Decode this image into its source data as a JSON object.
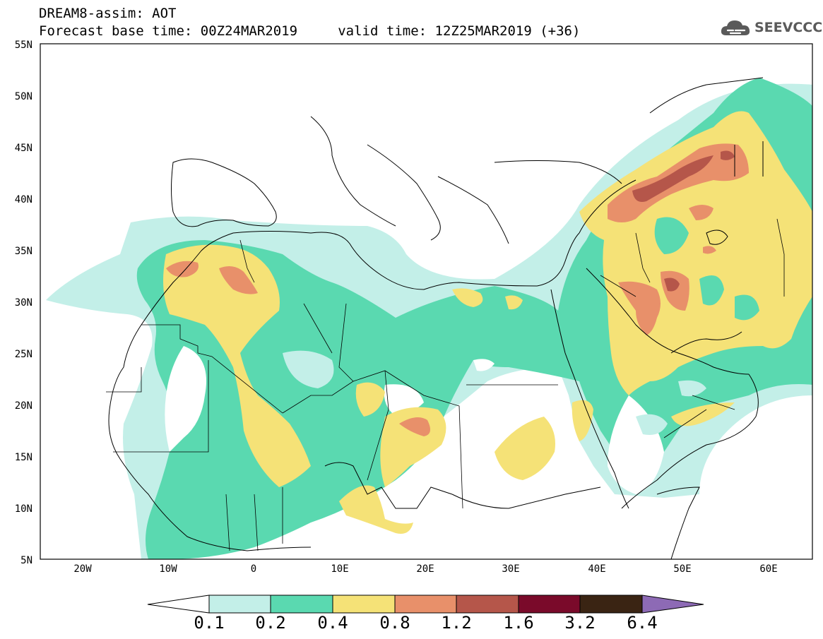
{
  "header": {
    "title_line1": "DREAM8-assim: AOT",
    "title_line2": "Forecast base time: 00Z24MAR2019     valid time: 12Z25MAR2019 (+36)",
    "logo_text": "SEEVCCC"
  },
  "map": {
    "lat_labels": [
      "55N",
      "50N",
      "45N",
      "40N",
      "35N",
      "30N",
      "25N",
      "20N",
      "15N",
      "10N",
      "5N"
    ],
    "lon_labels": [
      "20W",
      "10W",
      "0",
      "10E",
      "20E",
      "30E",
      "40E",
      "50E",
      "60E"
    ],
    "extent": {
      "lon": [
        -25,
        65
      ],
      "lat": [
        5,
        55
      ]
    }
  },
  "colorbar": {
    "labels": [
      "0.1",
      "0.2",
      "0.4",
      "0.8",
      "1.2",
      "1.6",
      "3.2",
      "6.4"
    ],
    "colors": [
      "#ffffff",
      "#c3efe8",
      "#5ad9b0",
      "#f5e277",
      "#e8906a",
      "#b5564a",
      "#7a0a2a",
      "#3a2413",
      "#8d6ab5"
    ]
  }
}
